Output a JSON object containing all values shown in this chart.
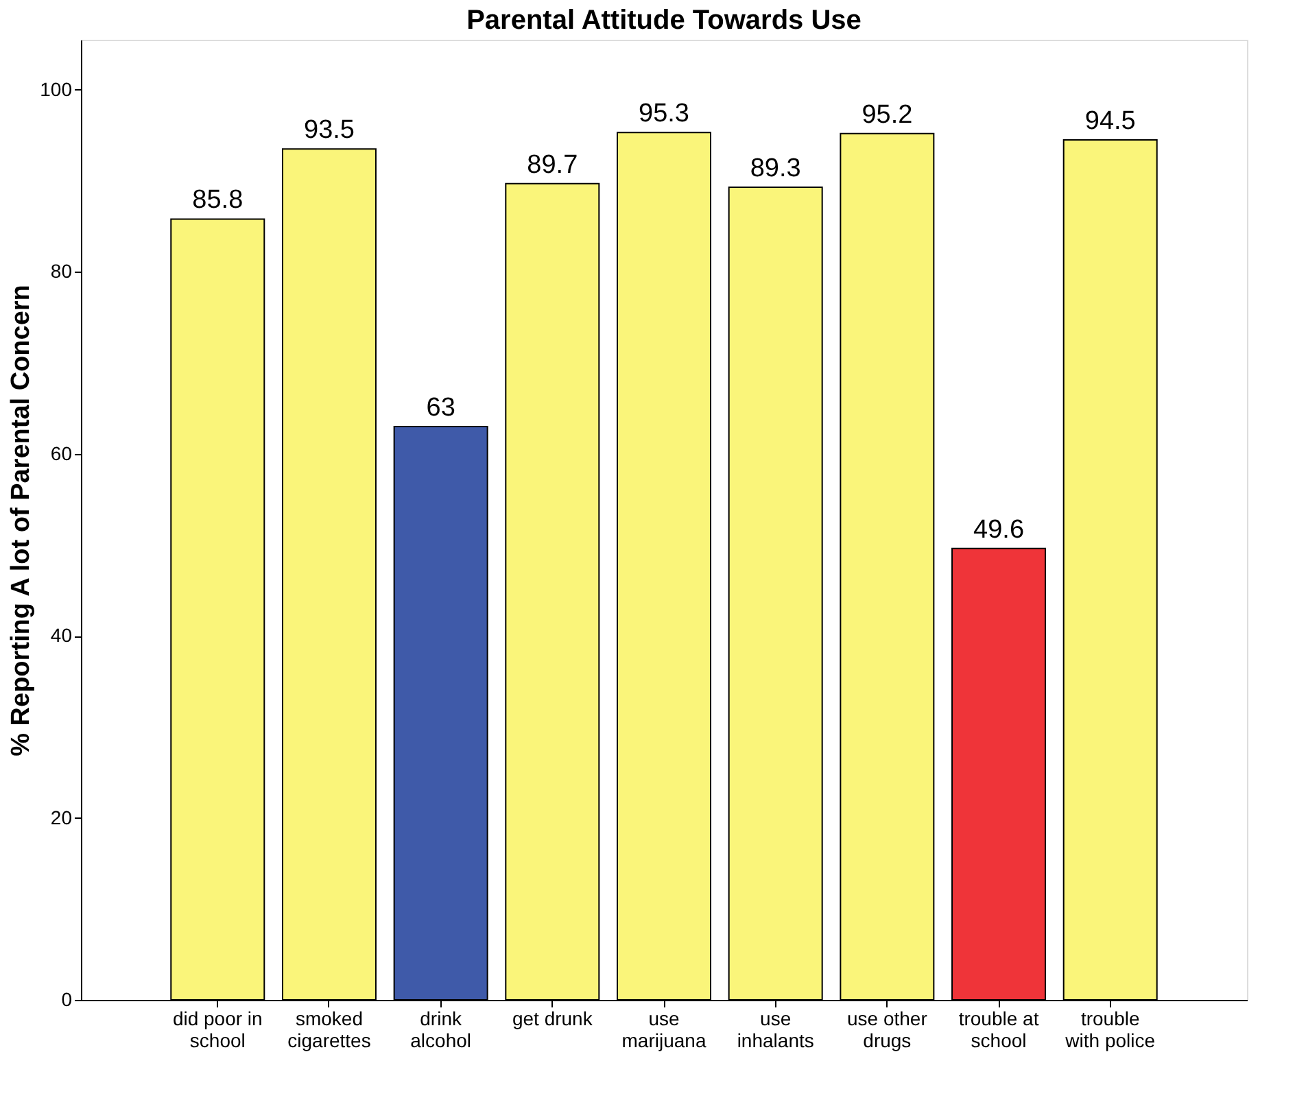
{
  "chart_data": {
    "type": "bar",
    "title": "Parental Attitude Towards Use",
    "ylabel": "% Reporting A lot of Parental Concern",
    "categories": [
      "did poor in school",
      "smoked cigarettes",
      "drink alcohol",
      "get drunk",
      "use marijuana",
      "use inhalants",
      "use other drugs",
      "trouble at school",
      "trouble with police"
    ],
    "values": [
      85.8,
      93.5,
      63,
      89.7,
      95.3,
      89.3,
      95.2,
      49.6,
      94.5
    ],
    "colors": [
      "#faf57a",
      "#faf57a",
      "#3f5aa9",
      "#faf57a",
      "#faf57a",
      "#faf57a",
      "#faf57a",
      "#ef3439",
      "#faf57a"
    ],
    "ylim": [
      0,
      105.5
    ],
    "yticks": [
      0,
      20,
      40,
      60,
      80,
      100
    ],
    "data_labels": true,
    "grid": false
  }
}
